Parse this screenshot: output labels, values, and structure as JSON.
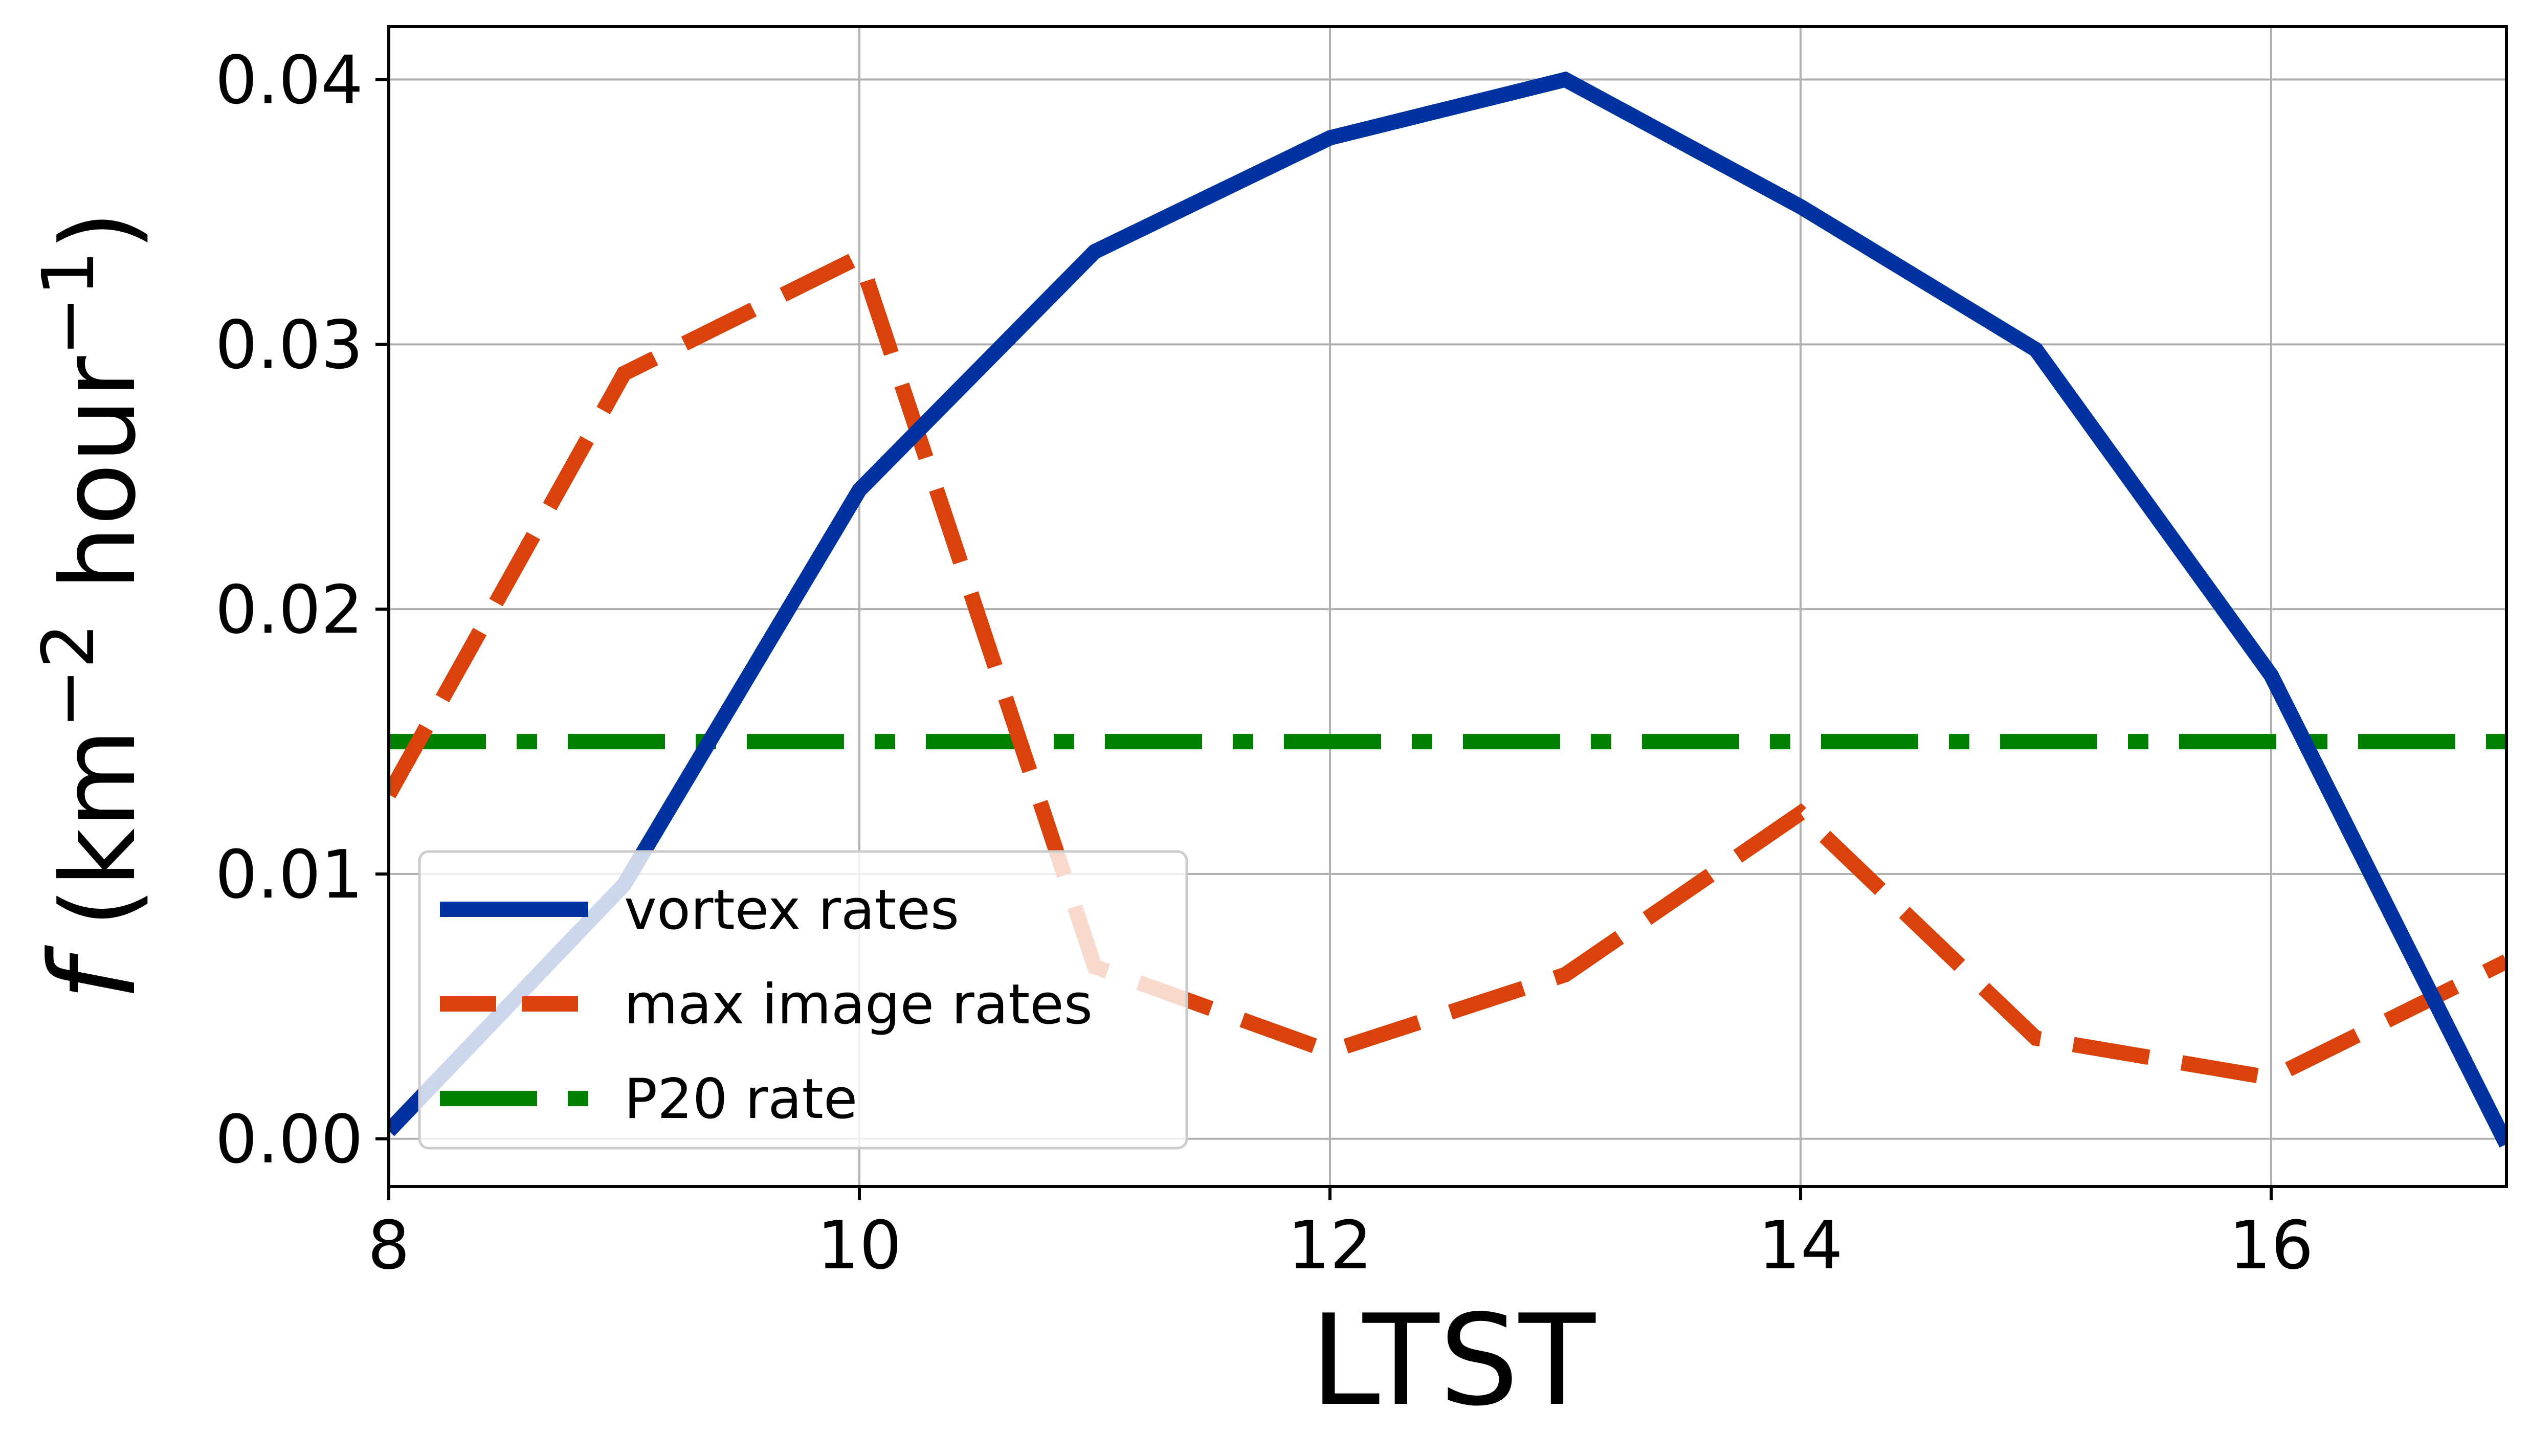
{
  "chart_data": {
    "type": "line",
    "xlabel": "LTST",
    "ylabel": "f (km⁻² hour⁻¹)",
    "xlim": [
      8,
      17
    ],
    "ylim": [
      -0.0018,
      0.042
    ],
    "xticks": [
      8,
      10,
      12,
      14,
      16
    ],
    "xtick_labels": [
      "8",
      "10",
      "12",
      "14",
      "16"
    ],
    "yticks": [
      0.0,
      0.01,
      0.02,
      0.03,
      0.04
    ],
    "ytick_labels": [
      "0.00",
      "0.01",
      "0.02",
      "0.03",
      "0.04"
    ],
    "grid": true,
    "legend_position": "bottom-left",
    "series": [
      {
        "name": "vortex rates",
        "color": "#0033a0",
        "style": "solid",
        "x": [
          8,
          9,
          10,
          11,
          12,
          13,
          14,
          15,
          16,
          17
        ],
        "y": [
          0.0003,
          0.0096,
          0.0245,
          0.0335,
          0.0378,
          0.04,
          0.0352,
          0.0298,
          0.0175,
          -0.0002
        ]
      },
      {
        "name": "max image rates",
        "color": "#d9420b",
        "style": "dashed",
        "x": [
          8,
          9,
          10,
          11,
          12,
          13,
          14,
          15,
          16,
          17
        ],
        "y": [
          0.013,
          0.0289,
          0.0333,
          0.0065,
          0.0033,
          0.0062,
          0.0123,
          0.0038,
          0.0023,
          0.0067
        ]
      },
      {
        "name": "P20 rate",
        "color": "#008000",
        "style": "dashdot",
        "x": [
          8,
          17
        ],
        "y": [
          0.015,
          0.015
        ]
      }
    ]
  }
}
